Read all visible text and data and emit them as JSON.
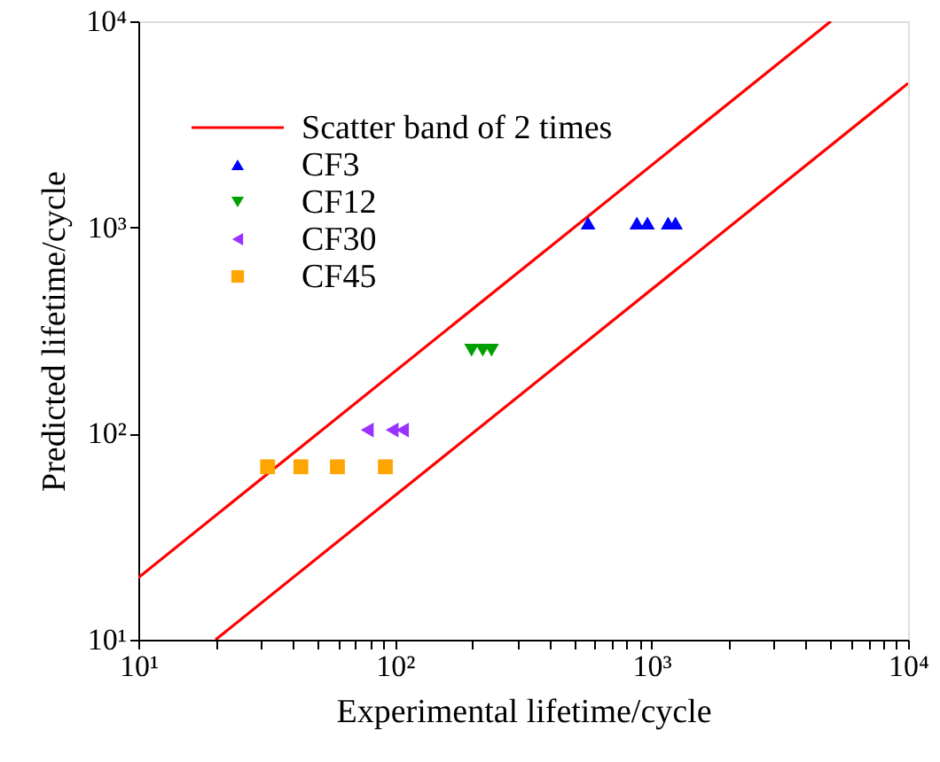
{
  "chart_data": {
    "type": "scatter",
    "xlabel": "Experimental lifetime/cycle",
    "ylabel": "Predicted lifetime/cycle",
    "log": "xy",
    "grid": false,
    "legend": "top left",
    "xlim": [
      10,
      10000
    ],
    "ylim": [
      10,
      10000
    ],
    "xticks": [
      {
        "value": 10,
        "label": "10¹"
      },
      {
        "value": 20,
        "label": null
      },
      {
        "value": 30,
        "label": null
      },
      {
        "value": 40,
        "label": null
      },
      {
        "value": 50,
        "label": null
      },
      {
        "value": 60,
        "label": null
      },
      {
        "value": 70,
        "label": null
      },
      {
        "value": 80,
        "label": null
      },
      {
        "value": 90,
        "label": null
      },
      {
        "value": 100,
        "label": "10²"
      },
      {
        "value": 200,
        "label": null
      },
      {
        "value": 300,
        "label": null
      },
      {
        "value": 400,
        "label": null
      },
      {
        "value": 500,
        "label": null
      },
      {
        "value": 600,
        "label": null
      },
      {
        "value": 700,
        "label": null
      },
      {
        "value": 800,
        "label": null
      },
      {
        "value": 900,
        "label": null
      },
      {
        "value": 1000,
        "label": "10³"
      },
      {
        "value": 2000,
        "label": null
      },
      {
        "value": 3000,
        "label": null
      },
      {
        "value": 4000,
        "label": null
      },
      {
        "value": 5000,
        "label": null
      },
      {
        "value": 6000,
        "label": null
      },
      {
        "value": 7000,
        "label": null
      },
      {
        "value": 8000,
        "label": null
      },
      {
        "value": 9000,
        "label": null
      },
      {
        "value": 10000,
        "label": "10⁴"
      }
    ],
    "yticks": [
      {
        "value": 10,
        "label": "10¹"
      },
      {
        "value": 100,
        "label": "10²"
      },
      {
        "value": 1000,
        "label": "10³"
      },
      {
        "value": 10000,
        "label": "10⁴"
      }
    ],
    "series": [
      {
        "type": "line",
        "name": "Scatter band of 2 times",
        "color": "#ff0000",
        "line_style": "solid",
        "x": [
          10,
          5000
        ],
        "values": [
          20,
          10000
        ]
      },
      {
        "type": "line",
        "color": "#ff0000",
        "line_style": "solid",
        "x": [
          20,
          10000
        ],
        "values": [
          10,
          5000
        ]
      },
      {
        "type": "scatter",
        "name": "CF3",
        "color": "#0000ff",
        "marker": "triangle",
        "x": [
          566,
          877,
          964,
          1161,
          1240
        ],
        "values": [
          1050,
          1050,
          1050,
          1050,
          1050
        ]
      },
      {
        "type": "scatter",
        "name": "CF12",
        "color": "#00a000",
        "marker": "triangle-down",
        "x": [
          199,
          220,
          238
        ],
        "values": [
          254,
          254,
          254
        ]
      },
      {
        "type": "scatter",
        "name": "CF30",
        "color": "#9933ff",
        "marker": "triangle-left",
        "x": [
          78,
          97.5,
          107
        ],
        "values": [
          104,
          104,
          104
        ]
      },
      {
        "type": "scatter",
        "name": "CF45",
        "color": "#ffa500",
        "marker": "square",
        "x": [
          31.9,
          43,
          59.7,
          91.8
        ],
        "values": [
          69,
          69,
          69,
          69
        ]
      }
    ]
  }
}
